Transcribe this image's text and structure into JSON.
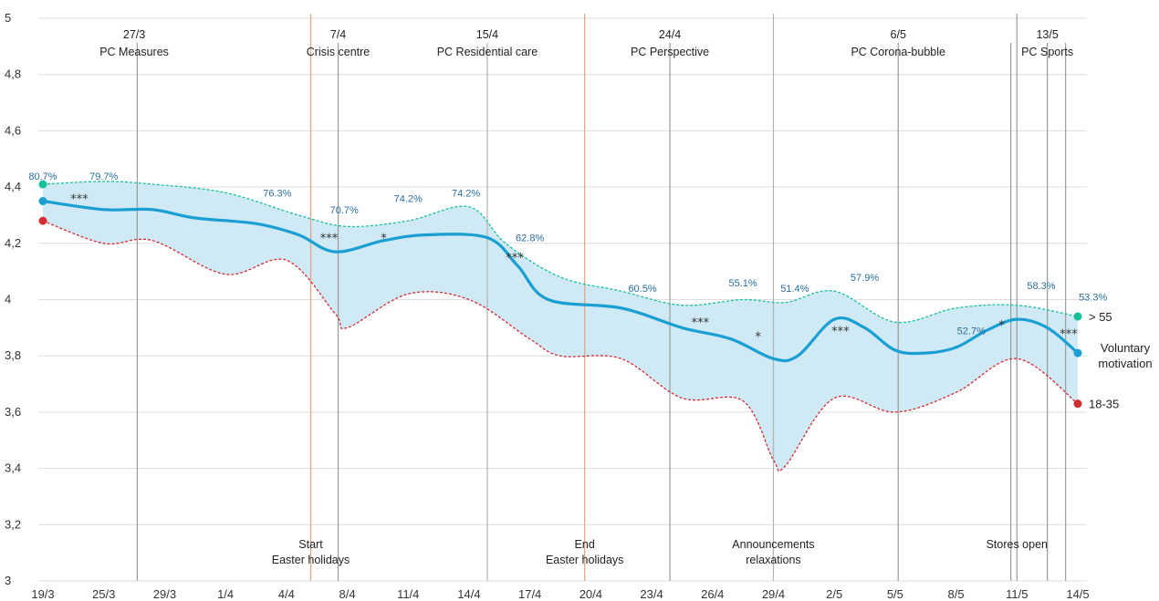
{
  "chart_data": {
    "type": "line",
    "x": [
      "19/3",
      "25/3",
      "29/3",
      "1/4",
      "4/4",
      "8/4",
      "11/4",
      "14/4",
      "17/4",
      "20/4",
      "23/4",
      "26/4",
      "29/4",
      "2/5",
      "5/5",
      "8/5",
      "11/5",
      "14/5"
    ],
    "ylim": [
      3,
      5
    ],
    "yticks": [
      "3",
      "3,2",
      "3,4",
      "3,6",
      "3,8",
      "4",
      "4,2",
      "4,4",
      "4,6",
      "4,8",
      "5"
    ],
    "grid": true,
    "series": [
      {
        "name": "> 55",
        "color": "#16c09b",
        "values": [
          [
            0,
            4.41
          ],
          [
            1,
            4.42
          ],
          [
            1.8,
            4.41
          ],
          [
            3,
            4.38
          ],
          [
            4.2,
            4.3
          ],
          [
            5,
            4.26
          ],
          [
            6,
            4.28
          ],
          [
            7,
            4.33
          ],
          [
            7.6,
            4.2
          ],
          [
            8.5,
            4.08
          ],
          [
            9.5,
            4.03
          ],
          [
            10.5,
            3.98
          ],
          [
            11.5,
            4.0
          ],
          [
            12.2,
            3.99
          ],
          [
            13,
            4.03
          ],
          [
            14,
            3.92
          ],
          [
            15,
            3.97
          ],
          [
            16,
            3.98
          ],
          [
            17,
            3.94
          ]
        ]
      },
      {
        "name": "Voluntary motivation",
        "color": "#1a9fd2",
        "values": [
          [
            0,
            4.35
          ],
          [
            1,
            4.32
          ],
          [
            1.8,
            4.32
          ],
          [
            2.5,
            4.29
          ],
          [
            3.5,
            4.27
          ],
          [
            4.2,
            4.23
          ],
          [
            4.8,
            4.17
          ],
          [
            5.6,
            4.21
          ],
          [
            6.3,
            4.23
          ],
          [
            7.3,
            4.22
          ],
          [
            7.8,
            4.12
          ],
          [
            8.3,
            4.0
          ],
          [
            9.5,
            3.97
          ],
          [
            10.5,
            3.9
          ],
          [
            11.3,
            3.86
          ],
          [
            12,
            3.79
          ],
          [
            12.4,
            3.8
          ],
          [
            13,
            3.93
          ],
          [
            13.5,
            3.9
          ],
          [
            14,
            3.82
          ],
          [
            14.5,
            3.81
          ],
          [
            15,
            3.83
          ],
          [
            15.5,
            3.89
          ],
          [
            16,
            3.93
          ],
          [
            16.5,
            3.9
          ],
          [
            17,
            3.81
          ]
        ]
      },
      {
        "name": "18-35",
        "color": "#d22d33",
        "values": [
          [
            0,
            4.28
          ],
          [
            1,
            4.2
          ],
          [
            1.8,
            4.21
          ],
          [
            3,
            4.09
          ],
          [
            4,
            4.14
          ],
          [
            4.8,
            3.95
          ],
          [
            5,
            3.9
          ],
          [
            6,
            4.02
          ],
          [
            7,
            4.0
          ],
          [
            8,
            3.86
          ],
          [
            8.5,
            3.8
          ],
          [
            9.5,
            3.79
          ],
          [
            10.5,
            3.65
          ],
          [
            11.5,
            3.64
          ],
          [
            12,
            3.43
          ],
          [
            12.2,
            3.41
          ],
          [
            13,
            3.65
          ],
          [
            14,
            3.6
          ],
          [
            15,
            3.67
          ],
          [
            16,
            3.79
          ],
          [
            17,
            3.63
          ]
        ]
      }
    ],
    "band_color": "#cfe9f5",
    "events_top": [
      {
        "date": "27/3",
        "label": "PC Measures",
        "x": 1.55,
        "color": "#9a9a9a",
        "label_x": 1.5
      },
      {
        "date": "7/4",
        "label": "Crisis centre",
        "x": 4.85,
        "color": "#9a9a9a",
        "label_x": 4.85
      },
      {
        "date": "15/4",
        "label": "PC Residential care",
        "x": 7.3,
        "color": "#b3b3b3",
        "label_x": 7.3
      },
      {
        "date": "24/4",
        "label": "PC Perspective",
        "x": 10.3,
        "color": "#9a9a9a",
        "label_x": 10.3
      },
      {
        "date": "6/5",
        "label": "PC Corona-bubble",
        "x": 14.05,
        "color": "#9a9a9a",
        "label_x": 14.05
      },
      {
        "date": "13/5",
        "label": "PC Sports",
        "x": 16.5,
        "color": "#9a9a9a",
        "label_x": 16.5
      }
    ],
    "events_bottom": [
      {
        "line1": "Start",
        "line2": "Easter holidays",
        "x": 4.4,
        "color": "#e6a27c",
        "label_x": 4.4
      },
      {
        "line1": "End",
        "line2": "Easter holidays",
        "x": 8.9,
        "color": "#e6a27c",
        "label_x": 8.9
      },
      {
        "line1": "Announcements",
        "line2": "relaxations",
        "x": 12,
        "color": "#b3b3b3",
        "label_x": 12
      },
      {
        "line1": "Stores open",
        "line2": "",
        "x": 16,
        "color": "#9a9a9a",
        "label_x": 16
      }
    ],
    "extra_lines": [
      {
        "x": 15.9,
        "color": "#9a9a9a"
      },
      {
        "x": 16.8,
        "color": "#9a9a9a"
      }
    ],
    "percentages": [
      {
        "x": 0,
        "y": 4.44,
        "label": "80.7%"
      },
      {
        "x": 1,
        "y": 4.44,
        "label": "79.7%"
      },
      {
        "x": 3.85,
        "y": 4.38,
        "label": "76.3%"
      },
      {
        "x": 4.95,
        "y": 4.32,
        "label": "70.7%"
      },
      {
        "x": 6,
        "y": 4.36,
        "label": "74.2%"
      },
      {
        "x": 6.95,
        "y": 4.38,
        "label": "74.2%"
      },
      {
        "x": 8,
        "y": 4.22,
        "label": "62.8%"
      },
      {
        "x": 9.85,
        "y": 4.04,
        "label": "60.5%"
      },
      {
        "x": 11.5,
        "y": 4.06,
        "label": "55.1%"
      },
      {
        "x": 12.35,
        "y": 4.04,
        "label": "51.4%"
      },
      {
        "x": 13.5,
        "y": 4.08,
        "label": "57.9%"
      },
      {
        "x": 15.25,
        "y": 3.89,
        "label": "52.7%"
      },
      {
        "x": 16.4,
        "y": 4.05,
        "label": "58.3%"
      },
      {
        "x": 17.25,
        "y": 4.01,
        "label": "53.3%"
      }
    ],
    "significance": [
      {
        "x": 0.6,
        "y": 4.37,
        "label": "***"
      },
      {
        "x": 4.7,
        "y": 4.23,
        "label": "***"
      },
      {
        "x": 5.6,
        "y": 4.23,
        "label": "*"
      },
      {
        "x": 7.75,
        "y": 4.16,
        "label": "***"
      },
      {
        "x": 10.8,
        "y": 3.93,
        "label": "***"
      },
      {
        "x": 11.75,
        "y": 3.88,
        "label": "*"
      },
      {
        "x": 13.1,
        "y": 3.9,
        "label": "***"
      },
      {
        "x": 15.75,
        "y": 3.92,
        "label": "*"
      },
      {
        "x": 16.85,
        "y": 3.89,
        "label": "***"
      }
    ],
    "end_labels": [
      {
        "series": "> 55",
        "lines": [
          "> 55"
        ]
      },
      {
        "series": "Voluntary motivation",
        "lines": [
          "Voluntary",
          "motivation"
        ]
      },
      {
        "series": "18-35",
        "lines": [
          "18-35"
        ]
      }
    ]
  }
}
